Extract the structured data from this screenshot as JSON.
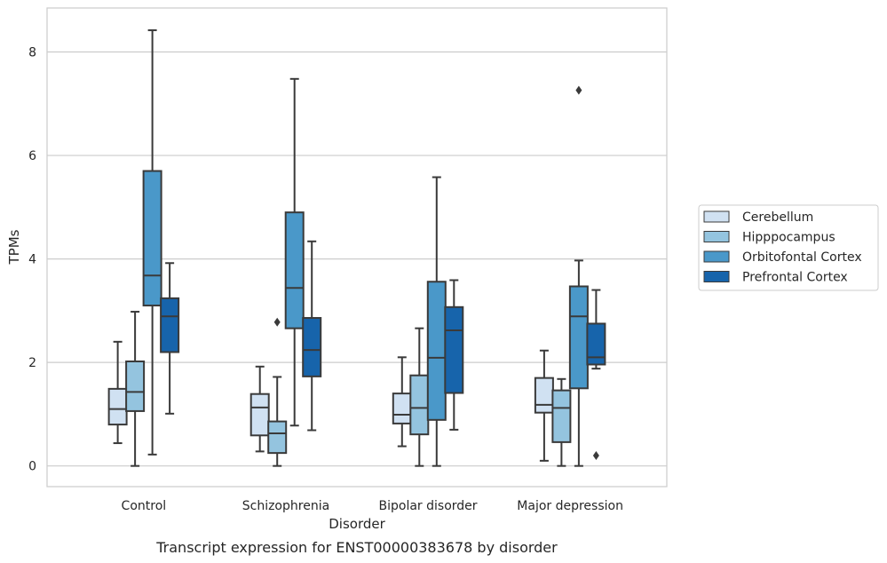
{
  "chart_data": {
    "type": "box",
    "title": "",
    "caption": "Transcript expression for ENST00000383678 by disorder",
    "xlabel": "Disorder",
    "ylabel": "TPMs",
    "ylim": [
      -0.4,
      8.85
    ],
    "yticks": [
      0,
      2,
      4,
      6,
      8
    ],
    "grid": "horizontal",
    "legend_position": "right",
    "categories": [
      "Control",
      "Schizophrenia",
      "Bipolar disorder",
      "Major depression"
    ],
    "series": [
      {
        "name": "Cerebellum",
        "color": "#d0e1f2",
        "boxes": [
          {
            "whislo": 0.44,
            "q1": 0.8,
            "med": 1.1,
            "q3": 1.49,
            "whishi": 2.4,
            "fliers": []
          },
          {
            "whislo": 0.28,
            "q1": 0.59,
            "med": 1.13,
            "q3": 1.39,
            "whishi": 1.92,
            "fliers": []
          },
          {
            "whislo": 0.38,
            "q1": 0.82,
            "med": 0.99,
            "q3": 1.4,
            "whishi": 2.1,
            "fliers": []
          },
          {
            "whislo": 0.1,
            "q1": 1.03,
            "med": 1.18,
            "q3": 1.7,
            "whishi": 2.23,
            "fliers": []
          }
        ]
      },
      {
        "name": "Hipppocampus",
        "color": "#94c4df",
        "boxes": [
          {
            "whislo": 0.0,
            "q1": 1.06,
            "med": 1.43,
            "q3": 2.02,
            "whishi": 2.98,
            "fliers": []
          },
          {
            "whislo": 0.0,
            "q1": 0.25,
            "med": 0.63,
            "q3": 0.86,
            "whishi": 1.72,
            "fliers": [
              2.78
            ]
          },
          {
            "whislo": 0.0,
            "q1": 0.61,
            "med": 1.12,
            "q3": 1.75,
            "whishi": 2.66,
            "fliers": []
          },
          {
            "whislo": 0.0,
            "q1": 0.46,
            "med": 1.12,
            "q3": 1.46,
            "whishi": 1.68,
            "fliers": []
          }
        ]
      },
      {
        "name": "Orbitofontal Cortex",
        "color": "#4a98c9",
        "boxes": [
          {
            "whislo": 0.22,
            "q1": 3.1,
            "med": 3.68,
            "q3": 5.7,
            "whishi": 8.42,
            "fliers": []
          },
          {
            "whislo": 0.78,
            "q1": 2.66,
            "med": 3.44,
            "q3": 4.9,
            "whishi": 7.48,
            "fliers": []
          },
          {
            "whislo": 0.0,
            "q1": 0.89,
            "med": 2.09,
            "q3": 3.56,
            "whishi": 5.58,
            "fliers": []
          },
          {
            "whislo": 0.0,
            "q1": 1.5,
            "med": 2.89,
            "q3": 3.47,
            "whishi": 3.97,
            "fliers": [
              7.26
            ]
          }
        ]
      },
      {
        "name": "Prefrontal Cortex",
        "color": "#1764ab",
        "boxes": [
          {
            "whislo": 1.01,
            "q1": 2.2,
            "med": 2.89,
            "q3": 3.24,
            "whishi": 3.92,
            "fliers": []
          },
          {
            "whislo": 0.69,
            "q1": 1.73,
            "med": 2.24,
            "q3": 2.86,
            "whishi": 4.34,
            "fliers": []
          },
          {
            "whislo": 0.7,
            "q1": 1.41,
            "med": 2.62,
            "q3": 3.07,
            "whishi": 3.59,
            "fliers": []
          },
          {
            "whislo": 1.88,
            "q1": 1.96,
            "med": 2.1,
            "q3": 2.75,
            "whishi": 3.4,
            "fliers": [
              0.2
            ]
          }
        ]
      }
    ]
  }
}
